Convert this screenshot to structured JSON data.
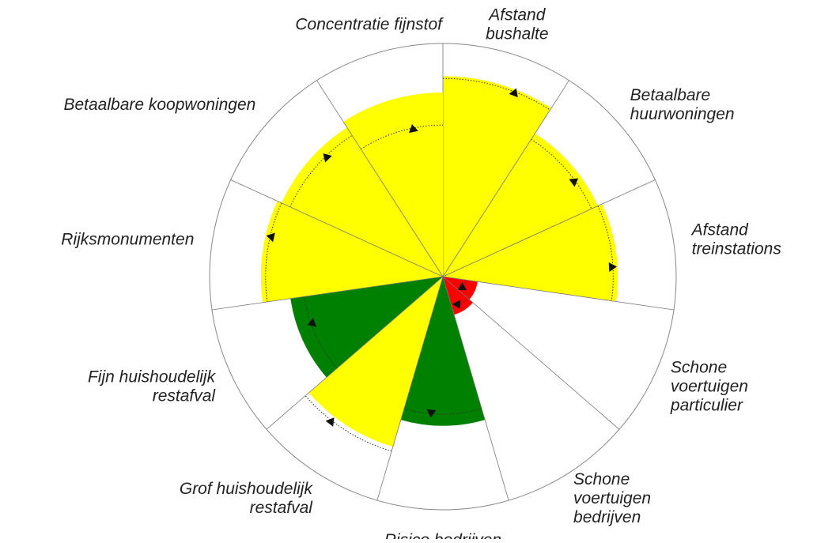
{
  "chart_data": {
    "type": "polar-area",
    "categories": [
      [
        "Afstand",
        "bushalte"
      ],
      [
        "Betaalbare",
        "huurwoningen"
      ],
      [
        "Afstand",
        "treinstations"
      ],
      [
        "Schone",
        "voertuigen",
        "particulier"
      ],
      [
        "Schone",
        "voertuigen",
        "bedrijven"
      ],
      [
        "Risico bedrijven"
      ],
      [
        "Grof huishoudelijk",
        "restafval"
      ],
      [
        "Fijn huishoudelijk",
        "restafval"
      ],
      [
        "Rijksmonumenten"
      ],
      [
        "Betaalbare koopwoningen"
      ],
      [
        "Concentratie fijnstof"
      ]
    ],
    "values": [
      86,
      73,
      75,
      15,
      17,
      64,
      76,
      66,
      78,
      76,
      79
    ],
    "targets": [
      85,
      70,
      73,
      10,
      14,
      59,
      78,
      60,
      76,
      72,
      65
    ],
    "colors": [
      "#ffff00",
      "#ffff00",
      "#ffff00",
      "#ff0000",
      "#ff0000",
      "#008000",
      "#ffff00",
      "#008000",
      "#ffff00",
      "#ffff00",
      "#ffff00"
    ],
    "rlim": [
      0,
      100
    ]
  }
}
